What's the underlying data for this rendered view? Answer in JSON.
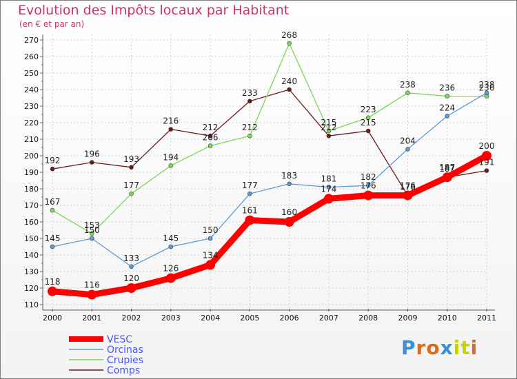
{
  "title": "Evolution des Impôts locaux par Habitant",
  "subtitle": "(en € et par an)",
  "logo": {
    "text": "Proxiti",
    "colors": [
      "#3b8fd6",
      "#e06a1b",
      "#e06a1b",
      "#3b8fd6",
      "#c8d400",
      "#c8d400",
      "#e06a1b"
    ]
  },
  "chart_data": {
    "type": "line",
    "x": [
      "2000",
      "2001",
      "2002",
      "2003",
      "2004",
      "2005",
      "2006",
      "2007",
      "2008",
      "2009",
      "2010",
      "2011"
    ],
    "yticks": [
      110,
      120,
      130,
      140,
      150,
      160,
      170,
      180,
      190,
      200,
      210,
      220,
      230,
      240,
      250,
      260,
      270
    ],
    "ylim": [
      110,
      270
    ],
    "grid": true,
    "legend_position": "bottom-left",
    "series": [
      {
        "name": "Comps",
        "color": "#6b1a1a",
        "values": [
          192,
          196,
          193,
          216,
          212,
          233,
          240,
          212,
          215,
          176,
          187,
          191
        ],
        "labels": [
          "192",
          "196",
          "193",
          "216",
          "212",
          "233",
          "240",
          "212",
          "215",
          "176",
          "187",
          "191"
        ]
      },
      {
        "name": "Crupies",
        "color": "#79d65a",
        "values": [
          167,
          153,
          177,
          194,
          206,
          212,
          268,
          215,
          223,
          238,
          236,
          236
        ],
        "labels": [
          "167",
          "153",
          "177",
          "194",
          "206",
          "212",
          "268",
          "215",
          "223",
          "238",
          "236",
          "236"
        ]
      },
      {
        "name": "Orcinas",
        "color": "#5b9bd5",
        "values": [
          145,
          150,
          133,
          145,
          150,
          177,
          183,
          181,
          182,
          204,
          224,
          238
        ],
        "labels": [
          "145",
          "150",
          "133",
          "145",
          "150",
          "177",
          "183",
          "181",
          "182",
          "204",
          "224",
          "238"
        ]
      },
      {
        "name": "VESC",
        "color": "#ff0000",
        "values": [
          118,
          116,
          120,
          126,
          134,
          161,
          160,
          174,
          176,
          176,
          187,
          200
        ],
        "labels": [
          "118",
          "116",
          "120",
          "126",
          "134",
          "161",
          "160",
          "174",
          "176",
          "176",
          "187",
          "200"
        ]
      }
    ],
    "legend": [
      "VESC",
      "Orcinas",
      "Crupies",
      "Comps"
    ]
  }
}
